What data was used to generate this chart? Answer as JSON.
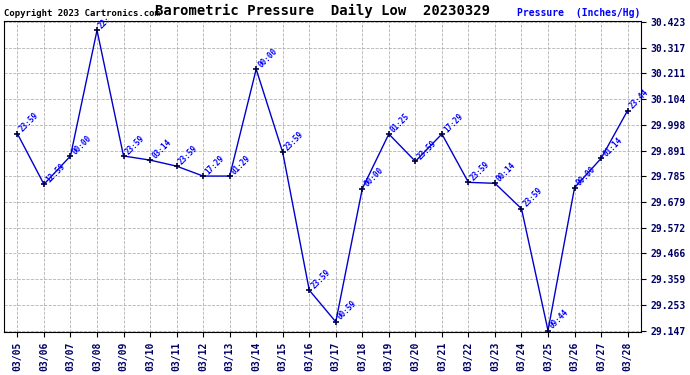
{
  "title": "Barometric Pressure  Daily Low  20230329",
  "ylabel": "Pressure  (Inches/Hg)",
  "copyright": "Copyright 2023 Cartronics.com",
  "dates": [
    "03/05",
    "03/06",
    "03/07",
    "03/08",
    "03/09",
    "03/10",
    "03/11",
    "03/12",
    "03/13",
    "03/14",
    "03/15",
    "03/16",
    "03/17",
    "03/18",
    "03/19",
    "03/20",
    "03/21",
    "03/22",
    "03/23",
    "03/24",
    "03/25",
    "03/26",
    "03/27",
    "03/28"
  ],
  "values": [
    29.961,
    29.752,
    29.869,
    30.389,
    29.869,
    29.852,
    29.827,
    29.786,
    29.786,
    30.228,
    29.884,
    29.314,
    29.183,
    29.734,
    29.96,
    29.847,
    29.96,
    29.76,
    29.756,
    29.651,
    29.147,
    29.738,
    29.859,
    30.057
  ],
  "time_labels": [
    "23:59",
    "12:59",
    "00:00",
    "22:",
    "23:59",
    "03:14",
    "23:59",
    "17:29",
    "01:29",
    "00:00",
    "23:59",
    "23:59",
    "00:59",
    "00:00",
    "01:25",
    "23:59",
    "17:29",
    "23:59",
    "00:14",
    "23:59",
    "09:44",
    "00:00",
    "01:14",
    "23:44"
  ],
  "ylim_min": 29.147,
  "ylim_max": 30.423,
  "yticks": [
    29.147,
    29.253,
    29.359,
    29.466,
    29.572,
    29.679,
    29.785,
    29.891,
    29.998,
    30.104,
    30.211,
    30.317,
    30.423
  ],
  "line_color": "#0000cc",
  "marker_color": "#000044",
  "label_color": "#0000ff",
  "background_color": "#ffffff",
  "grid_color": "#aaaaaa",
  "title_color": "#000000",
  "copyright_color": "#000000",
  "ylabel_color": "#0000ff"
}
